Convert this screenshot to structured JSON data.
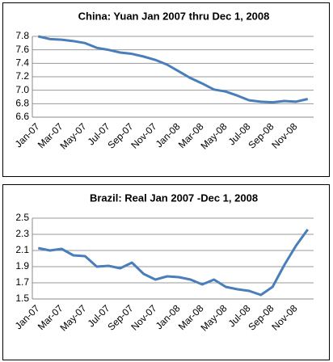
{
  "chart_data": [
    {
      "type": "line",
      "title": "China: Yuan  Jan 2007 thru Dec 1, 2008",
      "categories": [
        "Jan-07",
        null,
        "Mar-07",
        null,
        "May-07",
        null,
        "Jul-07",
        null,
        "Sep-07",
        null,
        "Nov-07",
        null,
        "Jan-08",
        null,
        "Mar-08",
        null,
        "May-08",
        null,
        "Jul-08",
        null,
        "Sep-08",
        null,
        "Nov-08",
        null
      ],
      "series": [
        {
          "name": "Yuan",
          "color": "#4a7ebb",
          "values": [
            7.8,
            7.76,
            7.75,
            7.73,
            7.7,
            7.63,
            7.6,
            7.56,
            7.54,
            7.5,
            7.45,
            7.38,
            7.28,
            7.18,
            7.1,
            7.01,
            6.98,
            6.92,
            6.85,
            6.83,
            6.82,
            6.84,
            6.83,
            6.87
          ]
        }
      ],
      "ylim": [
        6.6,
        7.8
      ],
      "yticks": [
        6.6,
        6.8,
        {
          "value": 7,
          "label": "7.0"
        },
        7.2,
        7.4,
        7.6,
        7.8
      ],
      "grid": true
    },
    {
      "type": "line",
      "title": "Brazil: Real  Jan 2007 -Dec 1, 2008",
      "categories": [
        "Jan-07",
        null,
        "Mar-07",
        null,
        "May-07",
        null,
        "Jul-07",
        null,
        "Sep-07",
        null,
        "Nov-07",
        null,
        "Jan-08",
        null,
        "Mar-08",
        null,
        "May-08",
        null,
        "Jul-08",
        null,
        "Sep-08",
        null,
        "Nov-08",
        null
      ],
      "series": [
        {
          "name": "Real",
          "color": "#4a7ebb",
          "values": [
            2.13,
            2.1,
            2.12,
            2.04,
            2.03,
            1.9,
            1.91,
            1.88,
            1.95,
            1.81,
            1.74,
            1.78,
            1.77,
            1.74,
            1.68,
            1.74,
            1.65,
            1.62,
            1.6,
            1.55,
            1.65,
            1.92,
            2.16,
            2.36
          ]
        }
      ],
      "ylim": [
        1.5,
        2.5
      ],
      "yticks": [
        1.5,
        1.7,
        1.9,
        2.1,
        2.3,
        2.5
      ],
      "grid": true
    }
  ]
}
